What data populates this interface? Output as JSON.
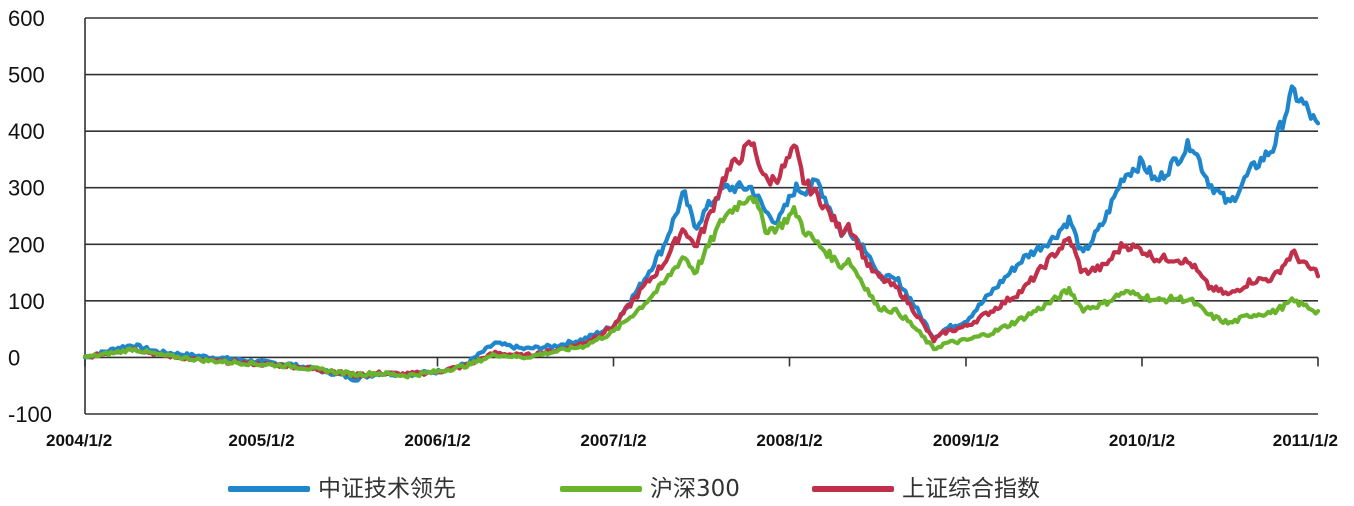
{
  "chart_data": {
    "type": "line",
    "title": "",
    "xlabel": "",
    "ylabel": "",
    "ylim": [
      -100,
      600
    ],
    "yticks": [
      "600",
      "500",
      "400",
      "300",
      "200",
      "100",
      "0",
      "-100"
    ],
    "xticks": [
      "2004/1/2",
      "2005/1/2",
      "2006/1/2",
      "2007/1/2",
      "2008/1/2",
      "2009/1/2",
      "2010/1/2",
      "2011/1/2"
    ],
    "xrange": [
      "2004-01-02",
      "2011-01-02"
    ],
    "grid": "horizontal",
    "legend_position": "bottom",
    "series": [
      {
        "name": "中证技术领先",
        "color": "#1f86cc",
        "points": [
          [
            "2004-01-02",
            0
          ],
          [
            "2004-03-15",
            18
          ],
          [
            "2004-04-10",
            22
          ],
          [
            "2004-06-01",
            10
          ],
          [
            "2004-09-01",
            2
          ],
          [
            "2005-01-02",
            -8
          ],
          [
            "2005-03-01",
            -12
          ],
          [
            "2005-06-01",
            -28
          ],
          [
            "2005-07-15",
            -38
          ],
          [
            "2005-09-01",
            -28
          ],
          [
            "2005-11-01",
            -30
          ],
          [
            "2006-01-02",
            -25
          ],
          [
            "2006-03-01",
            -12
          ],
          [
            "2006-05-01",
            25
          ],
          [
            "2006-07-01",
            15
          ],
          [
            "2006-09-01",
            20
          ],
          [
            "2006-11-01",
            32
          ],
          [
            "2007-01-02",
            55
          ],
          [
            "2007-03-01",
            130
          ],
          [
            "2007-04-15",
            195
          ],
          [
            "2007-05-28",
            290
          ],
          [
            "2007-06-20",
            230
          ],
          [
            "2007-07-20",
            270
          ],
          [
            "2007-08-20",
            300
          ],
          [
            "2007-10-16",
            300
          ],
          [
            "2007-11-15",
            255
          ],
          [
            "2007-12-10",
            240
          ],
          [
            "2008-01-14",
            300
          ],
          [
            "2008-02-01",
            295
          ],
          [
            "2008-03-01",
            310
          ],
          [
            "2008-04-21",
            215
          ],
          [
            "2008-05-01",
            230
          ],
          [
            "2008-06-15",
            185
          ],
          [
            "2008-07-01",
            145
          ],
          [
            "2008-08-15",
            135
          ],
          [
            "2008-09-15",
            95
          ],
          [
            "2008-10-27",
            35
          ],
          [
            "2008-11-20",
            50
          ],
          [
            "2009-01-02",
            65
          ],
          [
            "2009-03-01",
            120
          ],
          [
            "2009-05-01",
            175
          ],
          [
            "2009-07-01",
            210
          ],
          [
            "2009-08-05",
            245
          ],
          [
            "2009-08-31",
            180
          ],
          [
            "2009-10-15",
            240
          ],
          [
            "2009-11-24",
            320
          ],
          [
            "2010-01-02",
            345
          ],
          [
            "2010-02-01",
            310
          ],
          [
            "2010-03-15",
            350
          ],
          [
            "2010-04-15",
            380
          ],
          [
            "2010-05-20",
            310
          ],
          [
            "2010-07-02",
            270
          ],
          [
            "2010-08-15",
            330
          ],
          [
            "2010-10-01",
            370
          ],
          [
            "2010-11-11",
            470
          ],
          [
            "2010-12-10",
            440
          ],
          [
            "2011-01-02",
            405
          ]
        ]
      },
      {
        "name": "沪深300",
        "color": "#6ab42d",
        "points": [
          [
            "2004-01-02",
            0
          ],
          [
            "2004-03-15",
            10
          ],
          [
            "2004-04-10",
            15
          ],
          [
            "2004-06-01",
            5
          ],
          [
            "2004-09-01",
            -5
          ],
          [
            "2005-01-02",
            -12
          ],
          [
            "2005-03-01",
            -15
          ],
          [
            "2005-06-01",
            -25
          ],
          [
            "2005-07-15",
            -30
          ],
          [
            "2005-09-01",
            -28
          ],
          [
            "2005-11-01",
            -32
          ],
          [
            "2006-01-02",
            -25
          ],
          [
            "2006-03-01",
            -15
          ],
          [
            "2006-05-01",
            5
          ],
          [
            "2006-07-01",
            0
          ],
          [
            "2006-09-01",
            10
          ],
          [
            "2006-11-01",
            20
          ],
          [
            "2007-01-02",
            45
          ],
          [
            "2007-03-01",
            90
          ],
          [
            "2007-04-15",
            130
          ],
          [
            "2007-05-28",
            180
          ],
          [
            "2007-06-20",
            150
          ],
          [
            "2007-07-20",
            200
          ],
          [
            "2007-08-20",
            250
          ],
          [
            "2007-10-16",
            290
          ],
          [
            "2007-11-15",
            225
          ],
          [
            "2007-12-10",
            230
          ],
          [
            "2008-01-14",
            260
          ],
          [
            "2008-02-01",
            225
          ],
          [
            "2008-03-01",
            200
          ],
          [
            "2008-04-21",
            160
          ],
          [
            "2008-05-01",
            175
          ],
          [
            "2008-06-15",
            115
          ],
          [
            "2008-07-01",
            90
          ],
          [
            "2008-08-15",
            80
          ],
          [
            "2008-09-15",
            55
          ],
          [
            "2008-10-27",
            15
          ],
          [
            "2008-11-20",
            25
          ],
          [
            "2009-01-02",
            30
          ],
          [
            "2009-03-01",
            45
          ],
          [
            "2009-05-01",
            70
          ],
          [
            "2009-07-01",
            100
          ],
          [
            "2009-08-05",
            120
          ],
          [
            "2009-08-31",
            85
          ],
          [
            "2009-10-15",
            95
          ],
          [
            "2009-11-24",
            115
          ],
          [
            "2010-01-02",
            110
          ],
          [
            "2010-02-01",
            100
          ],
          [
            "2010-03-15",
            105
          ],
          [
            "2010-04-15",
            100
          ],
          [
            "2010-05-20",
            75
          ],
          [
            "2010-07-02",
            60
          ],
          [
            "2010-08-15",
            75
          ],
          [
            "2010-10-01",
            80
          ],
          [
            "2010-11-11",
            100
          ],
          [
            "2010-12-10",
            90
          ],
          [
            "2011-01-02",
            80
          ]
        ]
      },
      {
        "name": "上证综合指数",
        "color": "#c0304a",
        "points": [
          [
            "2004-01-02",
            0
          ],
          [
            "2004-03-15",
            12
          ],
          [
            "2004-04-10",
            16
          ],
          [
            "2004-06-01",
            5
          ],
          [
            "2004-09-01",
            -5
          ],
          [
            "2005-01-02",
            -12
          ],
          [
            "2005-03-01",
            -15
          ],
          [
            "2005-06-01",
            -25
          ],
          [
            "2005-07-15",
            -32
          ],
          [
            "2005-09-01",
            -28
          ],
          [
            "2005-11-01",
            -30
          ],
          [
            "2006-01-02",
            -25
          ],
          [
            "2006-03-01",
            -15
          ],
          [
            "2006-05-01",
            8
          ],
          [
            "2006-07-01",
            3
          ],
          [
            "2006-09-01",
            12
          ],
          [
            "2006-11-01",
            25
          ],
          [
            "2007-01-02",
            55
          ],
          [
            "2007-03-01",
            120
          ],
          [
            "2007-04-15",
            165
          ],
          [
            "2007-05-28",
            230
          ],
          [
            "2007-06-20",
            195
          ],
          [
            "2007-07-20",
            250
          ],
          [
            "2007-08-20",
            320
          ],
          [
            "2007-10-16",
            380
          ],
          [
            "2007-11-15",
            310
          ],
          [
            "2007-12-10",
            320
          ],
          [
            "2008-01-14",
            370
          ],
          [
            "2008-02-01",
            310
          ],
          [
            "2008-03-01",
            285
          ],
          [
            "2008-04-21",
            220
          ],
          [
            "2008-05-01",
            240
          ],
          [
            "2008-06-15",
            160
          ],
          [
            "2008-07-01",
            145
          ],
          [
            "2008-08-15",
            120
          ],
          [
            "2008-09-15",
            85
          ],
          [
            "2008-10-27",
            30
          ],
          [
            "2008-11-20",
            45
          ],
          [
            "2009-01-02",
            55
          ],
          [
            "2009-03-01",
            85
          ],
          [
            "2009-05-01",
            120
          ],
          [
            "2009-07-01",
            180
          ],
          [
            "2009-08-05",
            210
          ],
          [
            "2009-08-31",
            150
          ],
          [
            "2009-10-15",
            160
          ],
          [
            "2009-11-24",
            200
          ],
          [
            "2010-01-02",
            190
          ],
          [
            "2010-02-01",
            175
          ],
          [
            "2010-03-15",
            175
          ],
          [
            "2010-04-15",
            165
          ],
          [
            "2010-05-20",
            125
          ],
          [
            "2010-07-02",
            110
          ],
          [
            "2010-08-15",
            135
          ],
          [
            "2010-10-01",
            140
          ],
          [
            "2010-11-11",
            185
          ],
          [
            "2010-12-10",
            160
          ],
          [
            "2011-01-02",
            150
          ]
        ]
      }
    ]
  }
}
